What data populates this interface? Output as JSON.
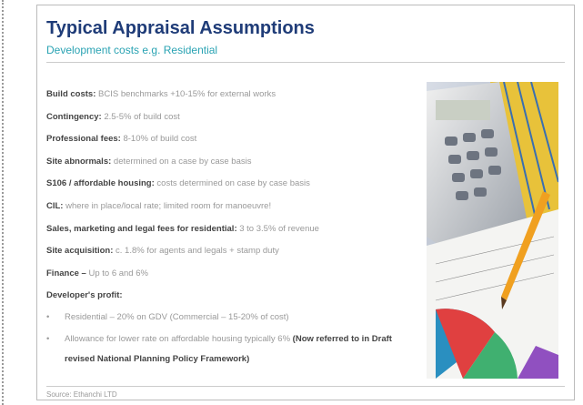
{
  "header": {
    "title": "Typical Appraisal Assumptions",
    "subtitle": "Development costs e.g. Residential"
  },
  "items": [
    {
      "label": "Build costs:",
      "text": "BCIS benchmarks +10-15% for external works"
    },
    {
      "label": "Contingency:",
      "text": "2.5-5% of build cost"
    },
    {
      "label": "Professional fees:",
      "text": "8-10% of build cost"
    },
    {
      "label": "Site abnormals:",
      "text": "determined on a case by case basis"
    },
    {
      "label": "S106 / affordable housing:",
      "text": "costs determined on case by case basis"
    },
    {
      "label": "CIL:",
      "text": "where in place/local rate; limited room for manoeuvre!"
    },
    {
      "label": "Sales, marketing and legal fees for residential:",
      "text": "3 to 3.5% of revenue"
    },
    {
      "label": "Site acquisition:",
      "text": "c. 1.8% for agents and legals + stamp duty"
    },
    {
      "label": "Finance –",
      "text": "Up to 6 and 6%"
    },
    {
      "label": "Developer's profit:",
      "text": ""
    }
  ],
  "profit_bullets": [
    {
      "text": "Residential – 20% on GDV (Commercial – 15-20% of cost)"
    },
    {
      "text": "Allowance for lower rate on affordable housing typically 6%",
      "bold": "(Now referred to in Draft revised National Planning Policy Framework)"
    }
  ],
  "footer": "Source: Ethanchi LTD"
}
